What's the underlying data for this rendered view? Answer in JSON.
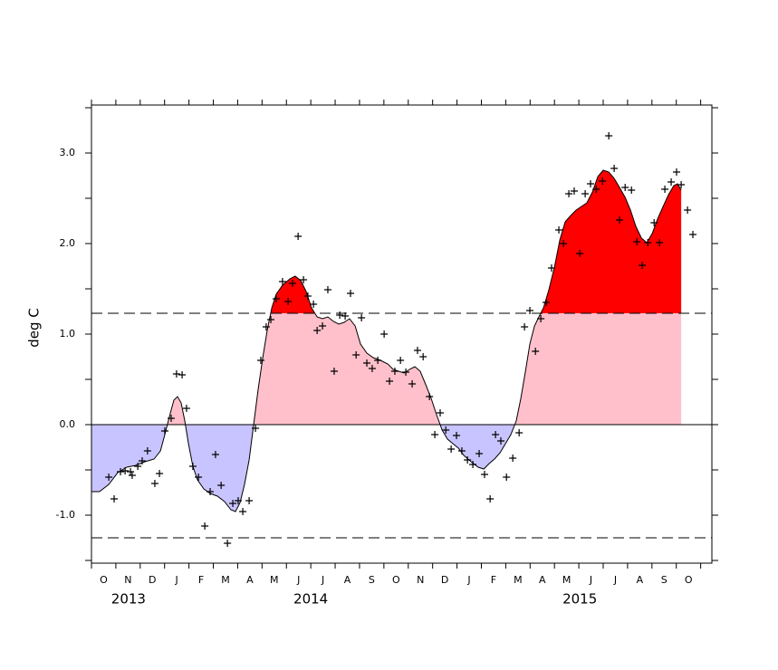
{
  "chart_data": {
    "type": "anomaly",
    "y_label": "deg C",
    "xlim": [
      0,
      25.46
    ],
    "ylim": [
      -1.53,
      3.53
    ],
    "yticks": [
      {
        "value": -1,
        "label": "-1.0"
      },
      {
        "value": 0,
        "label": "0.0"
      },
      {
        "value": 1,
        "label": "1.0"
      },
      {
        "value": 2,
        "label": "2.0"
      },
      {
        "value": 3,
        "label": "3.0"
      }
    ],
    "minor_yticks": [
      -1.5,
      -0.5,
      0.5,
      1.5,
      2.5,
      3.5
    ],
    "month_boundaries": [
      0,
      1,
      2,
      3,
      4,
      5,
      6,
      7,
      8,
      9,
      10,
      11,
      12,
      13,
      14,
      15,
      16,
      17,
      18,
      19,
      20,
      21,
      22,
      23,
      24,
      25
    ],
    "xticks": [
      {
        "value": 0.5,
        "label": "O"
      },
      {
        "value": 1.5,
        "label": "N"
      },
      {
        "value": 2.5,
        "label": "D"
      },
      {
        "value": 3.5,
        "label": "J"
      },
      {
        "value": 4.5,
        "label": "F"
      },
      {
        "value": 5.5,
        "label": "M"
      },
      {
        "value": 6.5,
        "label": "A"
      },
      {
        "value": 7.5,
        "label": "M"
      },
      {
        "value": 8.5,
        "label": "J"
      },
      {
        "value": 9.5,
        "label": "J"
      },
      {
        "value": 10.5,
        "label": "A"
      },
      {
        "value": 11.5,
        "label": "S"
      },
      {
        "value": 12.5,
        "label": "O"
      },
      {
        "value": 13.5,
        "label": "N"
      },
      {
        "value": 14.5,
        "label": "D"
      },
      {
        "value": 15.5,
        "label": "J"
      },
      {
        "value": 16.5,
        "label": "F"
      },
      {
        "value": 17.5,
        "label": "M"
      },
      {
        "value": 18.5,
        "label": "A"
      },
      {
        "value": 19.5,
        "label": "M"
      },
      {
        "value": 20.5,
        "label": "J"
      },
      {
        "value": 21.5,
        "label": "J"
      },
      {
        "value": 22.5,
        "label": "A"
      },
      {
        "value": 23.5,
        "label": "S"
      },
      {
        "value": 24.5,
        "label": "O"
      }
    ],
    "year_labels": [
      {
        "value": 1.52,
        "label": "2013"
      },
      {
        "value": 9.0,
        "label": "2014"
      },
      {
        "value": 20.04,
        "label": "2015"
      }
    ],
    "thresholds": [
      1.23,
      -1.25
    ],
    "fill_colors": {
      "positive": "#ffc0cb",
      "negative": "#c8c4ff",
      "above_threshold": "#ff0000"
    },
    "smoothed": {
      "x": [
        0.0,
        0.33,
        0.71,
        1.08,
        1.45,
        1.82,
        2.19,
        2.57,
        2.83,
        3.01,
        3.2,
        3.38,
        3.53,
        3.68,
        3.83,
        3.98,
        4.16,
        4.35,
        4.61,
        4.87,
        5.17,
        5.46,
        5.72,
        5.91,
        6.1,
        6.28,
        6.47,
        6.65,
        6.84,
        7.03,
        7.21,
        7.4,
        7.58,
        7.84,
        8.14,
        8.36,
        8.59,
        8.81,
        9.03,
        9.26,
        9.48,
        9.7,
        9.93,
        10.15,
        10.37,
        10.59,
        10.82,
        11.04,
        11.3,
        11.56,
        11.86,
        12.16,
        12.38,
        12.6,
        12.83,
        13.05,
        13.27,
        13.49,
        13.72,
        13.94,
        14.16,
        14.39,
        14.61,
        14.83,
        15.06,
        15.28,
        15.58,
        15.87,
        16.1,
        16.32,
        16.54,
        16.77,
        16.99,
        17.21,
        17.43,
        17.62,
        17.81,
        17.99,
        18.18,
        18.36,
        18.55,
        18.77,
        19.0,
        19.22,
        19.44,
        19.67,
        19.89,
        20.11,
        20.33,
        20.56,
        20.78,
        21.0,
        21.23,
        21.45,
        21.67,
        21.9,
        22.12,
        22.34,
        22.57,
        22.79,
        23.01,
        23.23,
        23.46,
        23.68,
        23.9,
        24.05,
        24.2
      ],
      "values": [
        -0.74,
        -0.74,
        -0.66,
        -0.53,
        -0.47,
        -0.45,
        -0.41,
        -0.38,
        -0.29,
        -0.11,
        0.09,
        0.27,
        0.31,
        0.24,
        0.04,
        -0.21,
        -0.46,
        -0.61,
        -0.71,
        -0.76,
        -0.79,
        -0.85,
        -0.94,
        -0.96,
        -0.86,
        -0.66,
        -0.39,
        -0.01,
        0.39,
        0.74,
        1.04,
        1.29,
        1.44,
        1.54,
        1.61,
        1.64,
        1.59,
        1.47,
        1.29,
        1.19,
        1.17,
        1.19,
        1.14,
        1.11,
        1.13,
        1.17,
        1.09,
        0.89,
        0.79,
        0.74,
        0.71,
        0.67,
        0.61,
        0.59,
        0.57,
        0.61,
        0.64,
        0.59,
        0.44,
        0.29,
        0.11,
        -0.06,
        -0.16,
        -0.21,
        -0.26,
        -0.34,
        -0.41,
        -0.47,
        -0.49,
        -0.43,
        -0.38,
        -0.31,
        -0.21,
        -0.11,
        0.04,
        0.29,
        0.59,
        0.89,
        1.09,
        1.19,
        1.29,
        1.49,
        1.74,
        2.04,
        2.24,
        2.31,
        2.37,
        2.41,
        2.45,
        2.57,
        2.74,
        2.81,
        2.79,
        2.72,
        2.62,
        2.51,
        2.37,
        2.19,
        2.06,
        2.01,
        2.11,
        2.27,
        2.41,
        2.54,
        2.64,
        2.66,
        2.59
      ]
    },
    "points": {
      "x": [
        0.71,
        0.93,
        1.19,
        1.38,
        1.6,
        1.67,
        1.9,
        2.08,
        2.3,
        2.6,
        2.79,
        3.01,
        3.27,
        3.49,
        3.72,
        3.9,
        4.16,
        4.39,
        4.65,
        4.87,
        5.09,
        5.32,
        5.58,
        5.8,
        6.02,
        6.21,
        6.47,
        6.73,
        6.95,
        7.17,
        7.36,
        7.58,
        7.84,
        8.07,
        8.25,
        8.48,
        8.7,
        8.88,
        9.11,
        9.26,
        9.48,
        9.7,
        9.96,
        10.19,
        10.41,
        10.63,
        10.86,
        11.08,
        11.3,
        11.52,
        11.75,
        12.01,
        12.23,
        12.45,
        12.68,
        12.9,
        13.16,
        13.38,
        13.61,
        13.87,
        14.09,
        14.31,
        14.54,
        14.76,
        14.98,
        15.2,
        15.43,
        15.65,
        15.91,
        16.13,
        16.36,
        16.58,
        16.8,
        17.03,
        17.29,
        17.55,
        17.77,
        17.99,
        18.22,
        18.44,
        18.66,
        18.88,
        19.18,
        19.37,
        19.59,
        19.81,
        20.04,
        20.26,
        20.48,
        20.71,
        20.97,
        21.23,
        21.45,
        21.67,
        21.9,
        22.16,
        22.38,
        22.6,
        22.83,
        23.09,
        23.31,
        23.53,
        23.79,
        24.01,
        24.2,
        24.46,
        24.68
      ],
      "values": [
        -0.58,
        -0.82,
        -0.52,
        -0.51,
        -0.52,
        -0.56,
        -0.46,
        -0.4,
        -0.29,
        -0.65,
        -0.54,
        -0.07,
        0.07,
        0.56,
        0.55,
        0.18,
        -0.46,
        -0.58,
        -1.12,
        -0.74,
        -0.33,
        -0.67,
        -1.31,
        -0.87,
        -0.84,
        -0.96,
        -0.84,
        -0.04,
        0.71,
        1.08,
        1.16,
        1.39,
        1.58,
        1.36,
        1.56,
        2.08,
        1.6,
        1.42,
        1.33,
        1.04,
        1.09,
        1.49,
        0.59,
        1.21,
        1.2,
        1.45,
        0.77,
        1.18,
        0.68,
        0.62,
        0.71,
        1.0,
        0.48,
        0.59,
        0.71,
        0.58,
        0.45,
        0.82,
        0.75,
        0.31,
        -0.11,
        0.13,
        -0.06,
        -0.27,
        -0.12,
        -0.29,
        -0.39,
        -0.44,
        -0.32,
        -0.55,
        -0.82,
        -0.11,
        -0.18,
        -0.58,
        -0.37,
        -0.09,
        1.08,
        1.26,
        0.81,
        1.17,
        1.35,
        1.73,
        2.15,
        2.0,
        2.55,
        2.58,
        1.89,
        2.55,
        2.66,
        2.6,
        2.69,
        3.19,
        2.83,
        2.26,
        2.62,
        2.59,
        2.02,
        1.76,
        2.01,
        2.23,
        2.01,
        2.6,
        2.68,
        2.79,
        2.65,
        2.37,
        2.1
      ]
    }
  }
}
